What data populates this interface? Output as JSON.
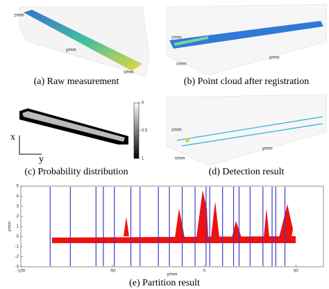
{
  "panels": [
    {
      "caption": "(a) Raw measurement",
      "axis_labels": [
        "z/mm",
        "y/mm",
        "x/mm"
      ]
    },
    {
      "caption": "(b) Point cloud after registration",
      "axis_labels": [
        "z/mm",
        "y/mm",
        "x/mm"
      ]
    },
    {
      "caption": "(c) Probability distribution",
      "axis_labels": [
        "x",
        "y"
      ],
      "colorbar_ticks": [
        0,
        0.5,
        1
      ]
    },
    {
      "caption": "(d) Detection result",
      "axis_labels": [
        "z/mm",
        "y/mm",
        "x/mm"
      ]
    }
  ],
  "chart_data": {
    "type": "scatter",
    "caption": "(e) Partition result",
    "x_label": "y/mm",
    "y_label": "z/mm",
    "xlim": [
      -100,
      65
    ],
    "ylim": [
      -3,
      5
    ],
    "xticks": [
      -100,
      -50,
      0,
      50
    ],
    "yticks": [
      -3,
      -2,
      -1,
      0,
      1,
      2,
      3,
      4,
      5
    ],
    "partitions": [
      -84,
      -73,
      -59,
      -55,
      -49,
      -40,
      -35,
      -25,
      -19,
      -12,
      -5,
      1,
      3,
      10,
      16,
      19,
      25,
      32,
      37,
      39,
      44
    ],
    "partition_color": "#3a3acc",
    "point_color": "#ee1111"
  }
}
